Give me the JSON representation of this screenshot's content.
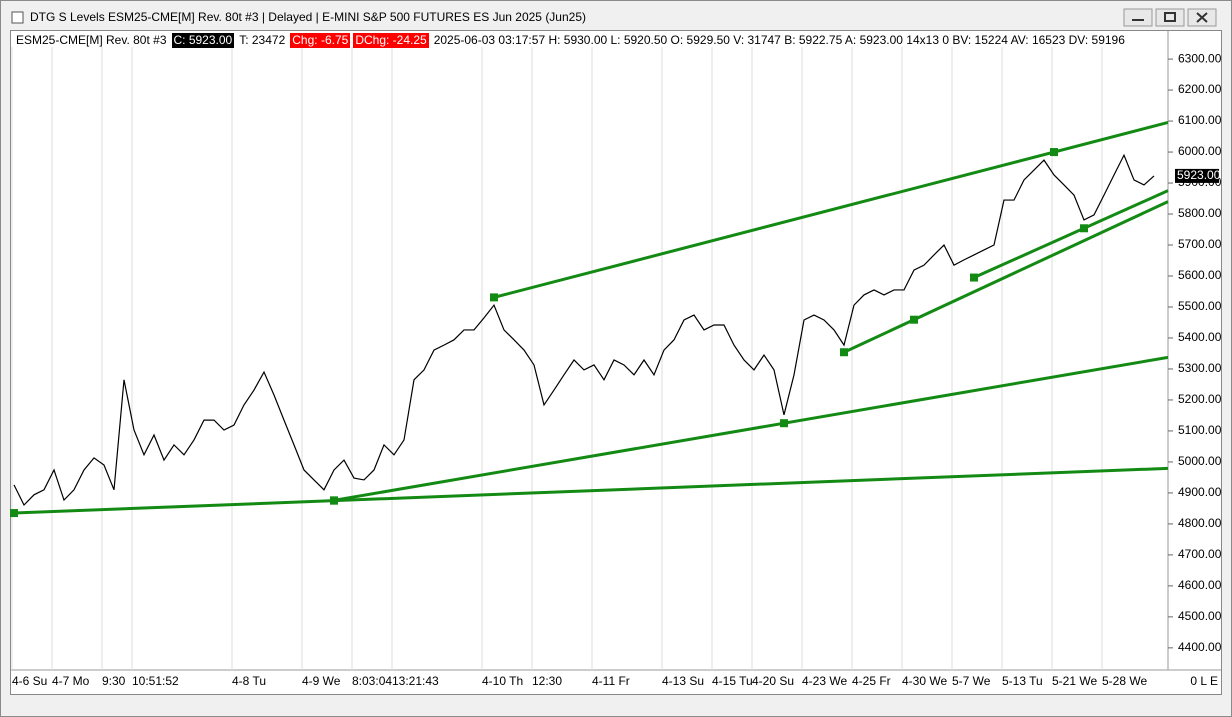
{
  "window_title": "DTG S Levels ESM25-CME[M]  Rev. 80t #3 | Delayed | E-MINI S&P 500 FUTURES ES Jun 2025 (Jun25)",
  "info_bar": {
    "symbol": "ESM25-CME[M]  Rev. 80t #3",
    "close": "C: 5923.00",
    "trades": "T: 23472",
    "change": "Chg: -6.75",
    "daily_change": "DChg: -24.25",
    "details": "2025-06-03 03:17:57 H: 5930.00 L: 5920.50 O: 5929.50 V: 31747 B: 5922.75 A: 5923.00 14x13 0 BV: 15224 AV: 16523 DV: 59196"
  },
  "status": "0 L E",
  "chart_data": {
    "type": "line",
    "categories": [
      "4-6 Su",
      null,
      null,
      null,
      "4-7 Mo",
      null,
      null,
      null,
      null,
      "9:30",
      null,
      null,
      "10:51:52",
      null,
      null,
      null,
      null,
      null,
      null,
      null,
      null,
      null,
      "4-8 Tu",
      null,
      null,
      null,
      null,
      null,
      null,
      "4-9 We",
      null,
      null,
      null,
      null,
      "8:03:04",
      null,
      null,
      null,
      "13:21:43",
      null,
      null,
      null,
      null,
      null,
      null,
      null,
      null,
      "4-10 Th",
      null,
      null,
      null,
      null,
      "12:30",
      null,
      null,
      null,
      null,
      null,
      "4-11 Fr",
      null,
      null,
      null,
      null,
      null,
      null,
      "4-13 Su",
      null,
      null,
      null,
      null,
      "4-15 Tu",
      null,
      null,
      null,
      "4-20 Su",
      null,
      null,
      null,
      null,
      "4-23 We",
      null,
      null,
      null,
      null,
      "4-25 Fr",
      null,
      null,
      null,
      null,
      "4-30 We",
      null,
      null,
      null,
      null,
      "5-7 We",
      null,
      null,
      null,
      null,
      "5-13 Tu",
      null,
      null,
      null,
      null,
      "5-21 We",
      null,
      null,
      null,
      null,
      "5-28 We",
      null,
      null,
      null,
      null,
      null
    ],
    "series": [
      {
        "color": "#000000",
        "values": [
          4926,
          4861,
          4894,
          4910,
          4974,
          4877,
          4910,
          4974,
          5013,
          4990,
          4910,
          5265,
          5103,
          5023,
          5087,
          5006,
          5055,
          5023,
          5071,
          5135,
          5135,
          5103,
          5119,
          5184,
          5232,
          5290,
          5216,
          5135,
          5055,
          4974,
          4942,
          4910,
          4974,
          5006,
          4948,
          4942,
          4974,
          5055,
          5023,
          5071,
          5265,
          5297,
          5361,
          5377,
          5394,
          5426,
          5426,
          5465,
          5506,
          5426,
          5394,
          5361,
          5313,
          5184,
          5232,
          5281,
          5329,
          5297,
          5313,
          5265,
          5329,
          5313,
          5281,
          5329,
          5281,
          5361,
          5394,
          5458,
          5474,
          5426,
          5442,
          5442,
          5377,
          5329,
          5297,
          5345,
          5297,
          5152,
          5281,
          5458,
          5474,
          5458,
          5426,
          5377,
          5506,
          5539,
          5555,
          5539,
          5555,
          5555,
          5619,
          5635,
          5668,
          5700,
          5635,
          5652,
          5668,
          5684,
          5700,
          5845,
          5845,
          5910,
          5942,
          5974,
          5926,
          5894,
          5861,
          5781,
          5797,
          5861,
          5926,
          5990,
          5910,
          5894,
          5923
        ]
      }
    ],
    "last_label": "5923.00",
    "trendline_color": "#138a13",
    "trendlines": [
      {
        "points": [
          [
            0,
            4835
          ],
          [
            32,
            4875
          ]
        ]
      },
      {
        "points": [
          [
            32,
            4876
          ],
          [
            77,
            5125
          ]
        ]
      },
      {
        "points": [
          [
            48,
            5531
          ],
          [
            104,
            6000
          ]
        ]
      },
      {
        "points": [
          [
            83,
            5354
          ],
          [
            90,
            5459
          ]
        ]
      },
      {
        "points": [
          [
            96,
            5595
          ],
          [
            107,
            5754
          ]
        ]
      }
    ],
    "ylim": [
      4335,
      6339
    ],
    "yticks": [
      {
        "value": 4400,
        "label": "4400.00"
      },
      {
        "value": 4500,
        "label": "4500.00"
      },
      {
        "value": 4600,
        "label": "4600.00"
      },
      {
        "value": 4700,
        "label": "4700.00"
      },
      {
        "value": 4800,
        "label": "4800.00"
      },
      {
        "value": 4900,
        "label": "4900.00"
      },
      {
        "value": 5000,
        "label": "5000.00"
      },
      {
        "value": 5100,
        "label": "5100.00"
      },
      {
        "value": 5200,
        "label": "5200.00"
      },
      {
        "value": 5300,
        "label": "5300.00"
      },
      {
        "value": 5400,
        "label": "5400.00"
      },
      {
        "value": 5500,
        "label": "5500.00"
      },
      {
        "value": 5600,
        "label": "5600.00"
      },
      {
        "value": 5700,
        "label": "5700.00"
      },
      {
        "value": 5800,
        "label": "5800.00"
      },
      {
        "value": 5900,
        "label": "5900.00"
      },
      {
        "value": 6000,
        "label": "6000.00"
      },
      {
        "value": 6100,
        "label": "6100.00"
      },
      {
        "value": 6200,
        "label": "6200.00"
      },
      {
        "value": 6300,
        "label": "6300.00"
      }
    ]
  }
}
